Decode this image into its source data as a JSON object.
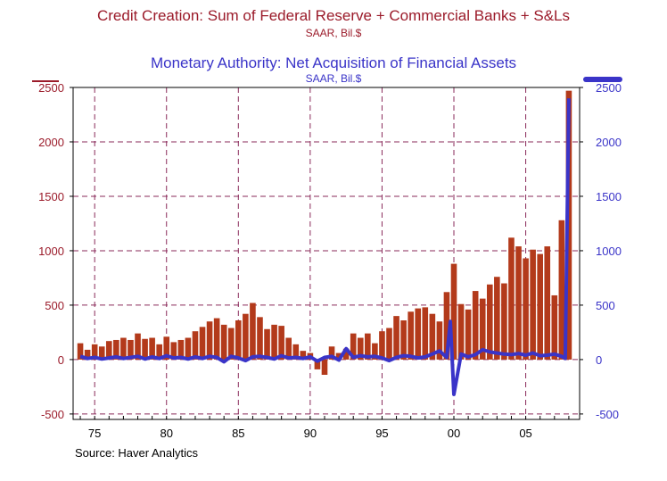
{
  "titles": {
    "left_title": "Credit Creation: Sum of Federal Reserve + Commercial Banks + S&Ls",
    "left_subtitle": "SAAR, Bil.$",
    "right_title": "Monetary Authority: Net Acquisition of Financial Assets",
    "right_subtitle": "SAAR, Bil.$"
  },
  "source": "Source: Haver Analytics",
  "colors": {
    "bars": "#b33a1b",
    "line": "#3a34c8",
    "left_axis": "#9b1b2a",
    "grid": "#8a2a5a"
  },
  "chart_data": {
    "type": "bar",
    "x_range": [
      1973.5,
      2008.75
    ],
    "ylim": [
      -550,
      2500
    ],
    "y_ticks": [
      -500,
      0,
      500,
      1000,
      1500,
      2000,
      2500
    ],
    "x_tick_labels": [
      "75",
      "80",
      "85",
      "90",
      "95",
      "00",
      "05"
    ],
    "x_tick_years": [
      1975,
      1980,
      1985,
      1990,
      1995,
      2000,
      2005
    ],
    "grid": true,
    "series": [
      {
        "type": "bar",
        "x": [
          1974,
          1974.5,
          1975,
          1975.5,
          1976,
          1976.5,
          1977,
          1977.5,
          1978,
          1978.5,
          1979,
          1979.5,
          1980,
          1980.5,
          1981,
          1981.5,
          1982,
          1982.5,
          1983,
          1983.5,
          1984,
          1984.5,
          1985,
          1985.5,
          1986,
          1986.5,
          1987,
          1987.5,
          1988,
          1988.5,
          1989,
          1989.5,
          1990,
          1990.5,
          1991,
          1991.5,
          1992,
          1992.5,
          1993,
          1993.5,
          1994,
          1994.5,
          1995,
          1995.5,
          1996,
          1996.5,
          1997,
          1997.5,
          1998,
          1998.5,
          1999,
          1999.5,
          2000,
          2000.5,
          2001,
          2001.5,
          2002,
          2002.5,
          2003,
          2003.5,
          2004,
          2004.5,
          2005,
          2005.5,
          2006,
          2006.5,
          2007,
          2007.5,
          2008
        ],
        "values": [
          150,
          90,
          140,
          120,
          170,
          180,
          200,
          180,
          240,
          190,
          200,
          140,
          210,
          160,
          180,
          200,
          260,
          300,
          350,
          380,
          320,
          290,
          360,
          420,
          520,
          390,
          280,
          320,
          310,
          200,
          140,
          80,
          60,
          -90,
          -140,
          120,
          60,
          100,
          240,
          200,
          240,
          150,
          260,
          290,
          400,
          360,
          440,
          470,
          480,
          420,
          350,
          620,
          880,
          510,
          460,
          630,
          560,
          690,
          760,
          700,
          1120,
          1040,
          930,
          1010,
          970,
          1040,
          590,
          1280,
          2470
        ]
      },
      {
        "type": "line",
        "x": [
          1974,
          1974.5,
          1975,
          1975.5,
          1976,
          1976.5,
          1977,
          1977.5,
          1978,
          1978.5,
          1979,
          1979.5,
          1980,
          1980.5,
          1981,
          1981.5,
          1982,
          1982.5,
          1983,
          1983.5,
          1984,
          1984.5,
          1985,
          1985.5,
          1986,
          1986.5,
          1987,
          1987.5,
          1988,
          1988.5,
          1989,
          1989.5,
          1990,
          1990.5,
          1991,
          1991.5,
          1992,
          1992.5,
          1993,
          1993.5,
          1994,
          1994.5,
          1995,
          1995.5,
          1996,
          1996.5,
          1997,
          1997.5,
          1998,
          1998.5,
          1999,
          1999.5,
          1999.75,
          2000,
          2000.5,
          2001,
          2001.5,
          2002,
          2002.5,
          2003,
          2003.5,
          2004,
          2004.5,
          2005,
          2005.5,
          2006,
          2006.5,
          2007,
          2007.5,
          2007.75,
          2008
        ],
        "values": [
          30,
          10,
          20,
          5,
          15,
          25,
          10,
          20,
          30,
          5,
          25,
          10,
          35,
          15,
          20,
          5,
          25,
          10,
          30,
          20,
          -20,
          30,
          15,
          -10,
          25,
          30,
          20,
          5,
          35,
          15,
          20,
          10,
          25,
          -15,
          20,
          30,
          -5,
          100,
          20,
          35,
          25,
          30,
          15,
          -10,
          20,
          35,
          30,
          15,
          25,
          50,
          80,
          20,
          350,
          -320,
          50,
          25,
          45,
          90,
          70,
          60,
          50,
          45,
          55,
          40,
          60,
          35,
          40,
          50,
          30,
          10,
          2400
        ]
      }
    ]
  }
}
